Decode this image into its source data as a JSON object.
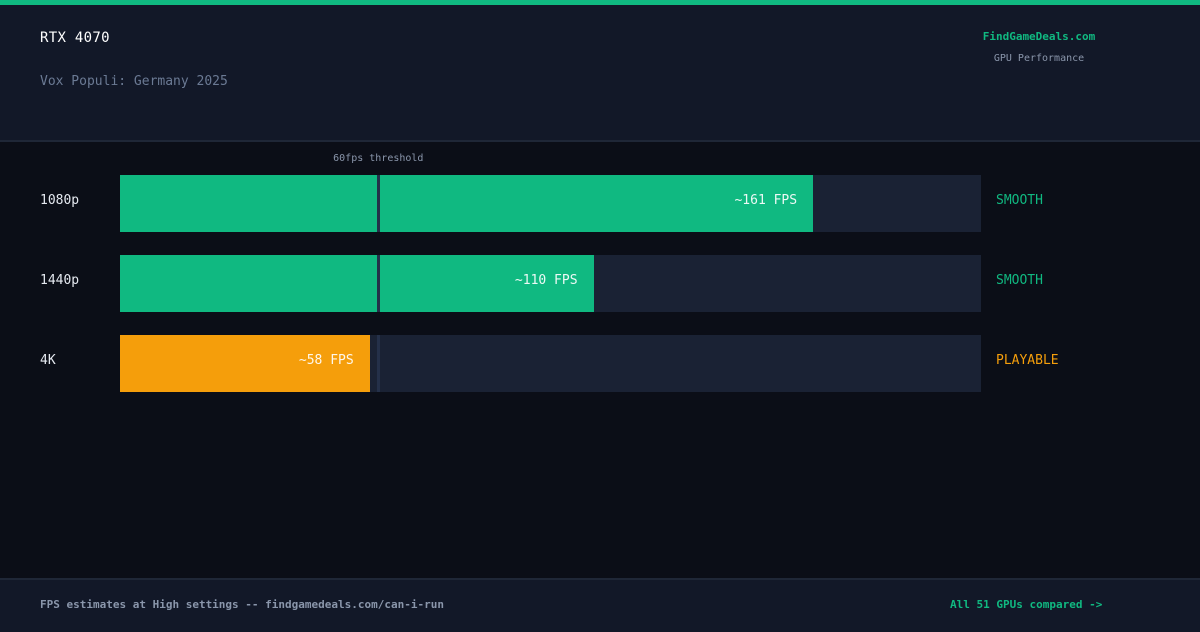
{
  "header": {
    "title": "RTX 4070",
    "subtitle": "Vox Populi: Germany 2025",
    "brand": "FindGameDeals.com",
    "brand_sub": "GPU Performance"
  },
  "colors": {
    "accent": "#10b981",
    "smooth": "#10b981",
    "playable": "#f59e0b",
    "track": "#1a2234",
    "background": "#0b0e17",
    "panel": "#121828"
  },
  "chart_data": {
    "type": "bar",
    "orientation": "horizontal",
    "categories": [
      "1080p",
      "1440p",
      "4K"
    ],
    "values": [
      161,
      110,
      58
    ],
    "value_labels": [
      "~161 FPS",
      "~110 FPS",
      "~58 FPS"
    ],
    "statuses": [
      "SMOOTH",
      "SMOOTH",
      "PLAYABLE"
    ],
    "status_colors": [
      "#10b981",
      "#10b981",
      "#f59e0b"
    ],
    "xlim": [
      0,
      200
    ],
    "threshold": {
      "value": 60,
      "label": "60fps threshold"
    },
    "grid": false
  },
  "footer": {
    "note": "FPS estimates at High settings -- findgamedeals.com/can-i-run",
    "link": "All 51 GPUs compared ->"
  }
}
